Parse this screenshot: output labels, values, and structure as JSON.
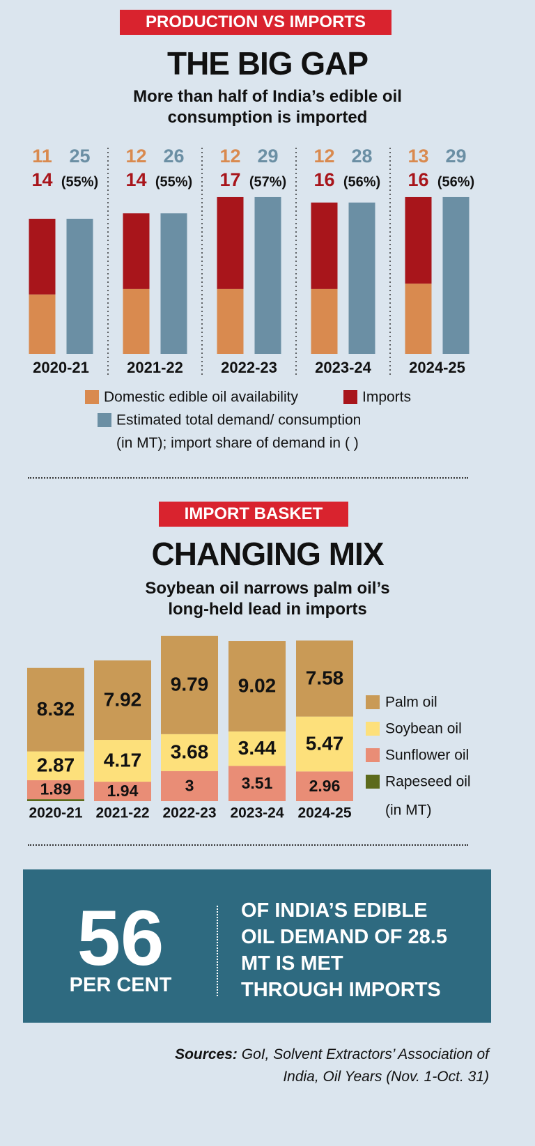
{
  "chart_data": [
    {
      "type": "bar",
      "stacked": true,
      "kicker": "PRODUCTION VS IMPORTS",
      "title": "THE BIG GAP",
      "subtitle": "More than half of India’s edible oil consumption is imported",
      "categories": [
        "2020-21",
        "2021-22",
        "2022-23",
        "2023-24",
        "2024-25"
      ],
      "series": [
        {
          "name": "Domestic edible oil availability",
          "color": "#d98a4f",
          "stack": "supply",
          "values": [
            11,
            12,
            12,
            12,
            13
          ]
        },
        {
          "name": "Imports",
          "color": "#a8151b",
          "stack": "supply",
          "values": [
            14,
            14,
            17,
            16,
            16
          ]
        },
        {
          "name": "Estimated total demand/ consumption",
          "color": "#6b8fa4",
          "stack": "demand",
          "values": [
            25,
            26,
            29,
            28,
            29
          ]
        }
      ],
      "import_share_labels": [
        "(55%)",
        "(55%)",
        "(57%)",
        "(56%)",
        "(56%)"
      ],
      "note": "(in MT); import share of demand in ( )"
    },
    {
      "type": "bar",
      "stacked": true,
      "kicker": "IMPORT BASKET",
      "title": "CHANGING MIX",
      "subtitle": "Soybean oil narrows palm oil’s long-held lead in imports",
      "categories": [
        "2020-21",
        "2021-22",
        "2022-23",
        "2023-24",
        "2024-25"
      ],
      "series": [
        {
          "name": "Rapeseed oil",
          "color": "#5c6a1c",
          "values": [
            0.2,
            0,
            0,
            0,
            0
          ]
        },
        {
          "name": "Sunflower oil",
          "color": "#e98d76",
          "values": [
            1.89,
            1.94,
            3,
            3.51,
            2.96
          ]
        },
        {
          "name": "Soybean oil",
          "color": "#fde07b",
          "values": [
            2.87,
            4.17,
            3.68,
            3.44,
            5.47
          ]
        },
        {
          "name": "Palm oil",
          "color": "#c99a56",
          "values": [
            8.32,
            7.92,
            9.79,
            9.02,
            7.58
          ]
        }
      ],
      "note": "(in MT)"
    }
  ],
  "stat": {
    "value": 56,
    "unit": "PER CENT",
    "text": "OF INDIA’S EDIBLE OIL DEMAND OF 28.5 MT IS MET THROUGH IMPORTS"
  },
  "sources": {
    "label": "Sources:",
    "text": "GoI, Solvent Extractors’ Association of India, Oil Years (Nov. 1-Oct. 31)"
  }
}
